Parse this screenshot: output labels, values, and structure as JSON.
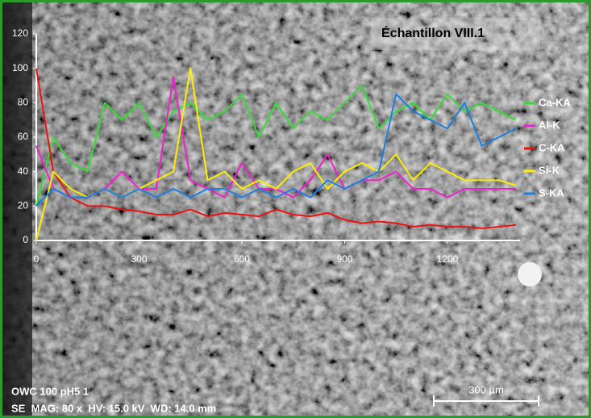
{
  "chart_data": {
    "type": "line",
    "title": "Échantillon VIII.1",
    "x": [
      0,
      50,
      100,
      150,
      200,
      250,
      300,
      350,
      400,
      450,
      500,
      550,
      600,
      650,
      700,
      750,
      800,
      850,
      900,
      950,
      1000,
      1050,
      1100,
      1150,
      1200,
      1250,
      1300,
      1350,
      1400
    ],
    "xlim": [
      0,
      1400
    ],
    "xticks": [
      0,
      300,
      600,
      900,
      1200
    ],
    "ylim": [
      0,
      120
    ],
    "yticks": [
      0,
      20,
      40,
      60,
      80,
      100,
      120
    ],
    "legend": "right",
    "series": [
      {
        "name": "Ca-KA",
        "color": "#33dd33",
        "values": [
          20,
          60,
          45,
          40,
          80,
          70,
          80,
          60,
          75,
          80,
          70,
          75,
          85,
          60,
          80,
          65,
          75,
          70,
          80,
          90,
          65,
          75,
          80,
          70,
          85,
          75,
          80,
          75,
          70
        ]
      },
      {
        "name": "Al-K",
        "color": "#ee22cc",
        "values": [
          55,
          30,
          25,
          25,
          30,
          40,
          30,
          30,
          95,
          35,
          30,
          25,
          45,
          30,
          30,
          25,
          35,
          50,
          30,
          35,
          35,
          40,
          30,
          30,
          25,
          30,
          30,
          30,
          30
        ]
      },
      {
        "name": "C-KA",
        "color": "#ee1111",
        "values": [
          100,
          40,
          25,
          20,
          20,
          18,
          17,
          15,
          15,
          18,
          14,
          16,
          15,
          14,
          18,
          15,
          14,
          16,
          12,
          10,
          11,
          10,
          8,
          9,
          8,
          8,
          7,
          8,
          9
        ]
      },
      {
        "name": "Si-K",
        "color": "#ffee00",
        "values": [
          0,
          40,
          30,
          25,
          30,
          25,
          30,
          35,
          40,
          100,
          35,
          40,
          30,
          35,
          30,
          40,
          45,
          30,
          40,
          45,
          40,
          50,
          35,
          45,
          40,
          35,
          35,
          35,
          32
        ]
      },
      {
        "name": "S-KA",
        "color": "#1a7fe0",
        "values": [
          20,
          30,
          25,
          25,
          30,
          25,
          30,
          25,
          30,
          25,
          30,
          30,
          25,
          30,
          25,
          30,
          25,
          35,
          30,
          35,
          40,
          85,
          75,
          70,
          65,
          80,
          55,
          60,
          65
        ]
      }
    ],
    "annotations": {
      "sample": "OWC 100 pH5 1",
      "settings": "SE  MAG: 80 x  HV: 15.0 kV  WD: 14.0 mm",
      "scale_bar": "300 µm"
    }
  }
}
